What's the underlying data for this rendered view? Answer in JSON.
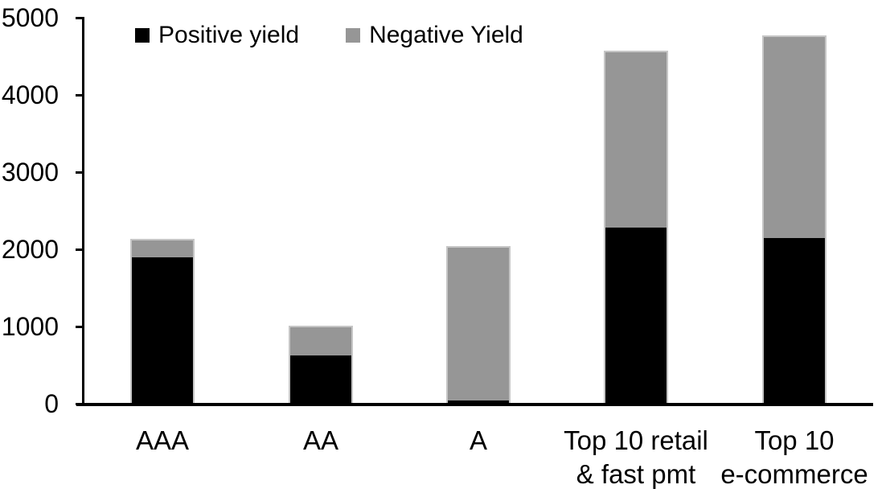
{
  "colors": {
    "positive": "#000000",
    "negative": "#969696",
    "axis": "#000000",
    "bar_outline": "#c6c6c6",
    "background": "#ffffff",
    "text": "#000000"
  },
  "chart_data": {
    "type": "bar",
    "stacked": true,
    "title": "",
    "xlabel": "",
    "ylabel": "",
    "grid": false,
    "legend_position": "top",
    "ylim": [
      0,
      5000
    ],
    "yticks": [
      0,
      1000,
      2000,
      3000,
      4000,
      5000
    ],
    "categories": [
      "AAA",
      "AA",
      "A",
      "Top 10 retail & fast pmt",
      "Top 10 e-commerce"
    ],
    "category_lines": [
      [
        "AAA"
      ],
      [
        "AA"
      ],
      [
        "A"
      ],
      [
        "Top 10 retail",
        "& fast pmt"
      ],
      [
        "Top 10",
        "e-commerce"
      ]
    ],
    "series": [
      {
        "name": "Positive yield",
        "color": "#000000",
        "values": [
          1900,
          620,
          40,
          2280,
          2150
        ]
      },
      {
        "name": "Negative Yield",
        "color": "#969696",
        "values": [
          220,
          380,
          1990,
          2280,
          2610
        ]
      }
    ],
    "totals": [
      2120,
      1000,
      2030,
      4560,
      4760
    ]
  }
}
